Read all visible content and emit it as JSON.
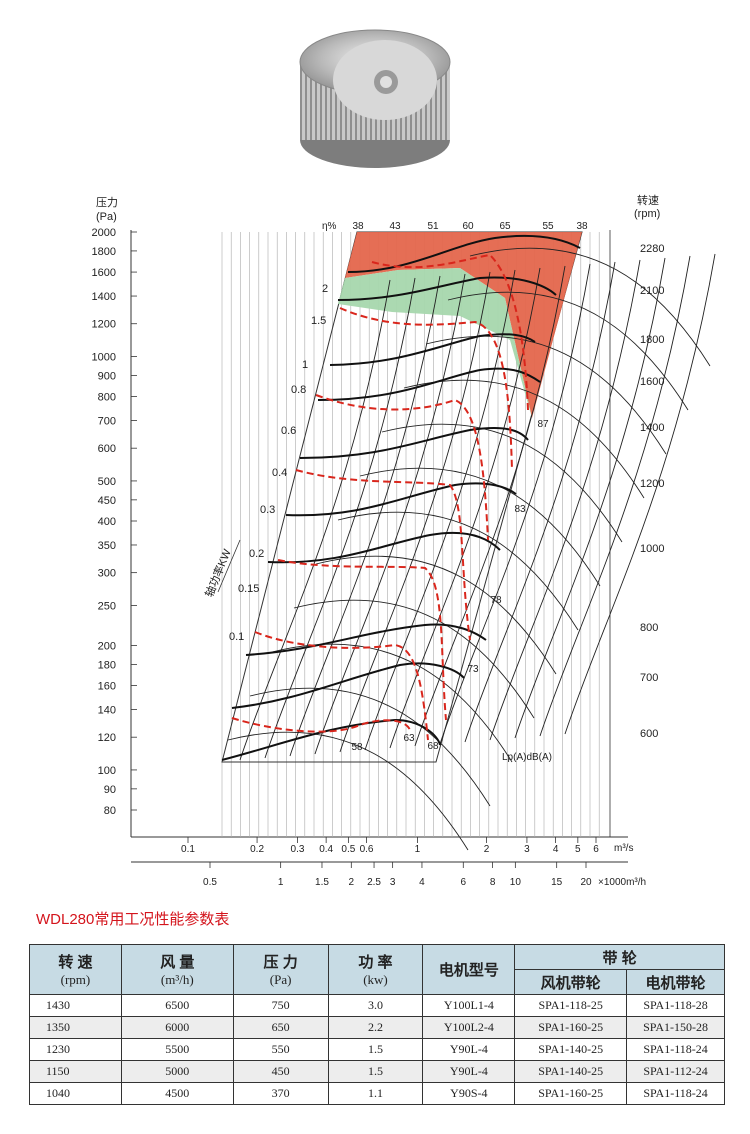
{
  "chart_data": {
    "type": "line",
    "title": "",
    "y_axis_left": {
      "label_line1": "压力",
      "label_line2": "(Pa)",
      "scale": "log",
      "ticks": [
        2000,
        1800,
        1600,
        1400,
        1200,
        1000,
        900,
        800,
        700,
        600,
        500,
        450,
        400,
        350,
        300,
        250,
        200,
        180,
        160,
        140,
        120,
        100,
        90,
        80
      ]
    },
    "y_axis_right": {
      "label_line1": "转速",
      "label_line2": "(rpm)",
      "ticks": [
        2280,
        2100,
        1800,
        1600,
        1400,
        1200,
        1000,
        800,
        700,
        600
      ]
    },
    "x_axis_m3s": {
      "unit": "m³/s",
      "scale": "log",
      "ticks": [
        "0.1",
        "0.2",
        "0.3",
        "0.4",
        "0.5",
        "0.6",
        "1",
        "2",
        "3",
        "4",
        "5",
        "6"
      ]
    },
    "x_axis_m3h": {
      "unit": "×1000m³/h",
      "scale": "log",
      "ticks": [
        "0.5",
        "1",
        "1.5",
        "2",
        "2.5",
        "3",
        "4",
        "6",
        "8",
        "10",
        "15",
        "20"
      ]
    },
    "efficiency_label": "η%",
    "efficiency_top_values": [
      "38",
      "43",
      "51",
      "60",
      "65",
      "55",
      "38"
    ],
    "shaft_power_label": "轴功率KW",
    "shaft_power_values": [
      "2",
      "1.5",
      "1",
      "0.8",
      "0.6",
      "0.4",
      "0.3",
      "0.2",
      "0.15",
      "0.1"
    ],
    "noise_label": "Lp(A)dB(A)",
    "noise_values": [
      "58",
      "63",
      "68",
      "73",
      "78",
      "83",
      "87"
    ],
    "zone_colors": {
      "red_zone": "#e4664c",
      "green_zone": "#a6d7ad",
      "red_dash": "#d9261c"
    }
  },
  "table": {
    "title": "WDL280常用工况性能参数表",
    "headers": {
      "speed": "转 速",
      "speed_unit": "(rpm)",
      "flow": "风 量",
      "flow_unit": "(m³/h)",
      "pressure": "压 力",
      "pressure_unit": "(Pa)",
      "power": "功 率",
      "power_unit": "(kw)",
      "motor": "电机型号",
      "pulley": "带 轮",
      "fan_pulley": "风机带轮",
      "motor_pulley": "电机带轮"
    },
    "rows": [
      [
        "1430",
        "6500",
        "750",
        "3.0",
        "Y100L1-4",
        "SPA1-118-25",
        "SPA1-118-28"
      ],
      [
        "1350",
        "6000",
        "650",
        "2.2",
        "Y100L2-4",
        "SPA1-160-25",
        "SPA1-150-28"
      ],
      [
        "1230",
        "5500",
        "550",
        "1.5",
        "Y90L-4",
        "SPA1-140-25",
        "SPA1-118-24"
      ],
      [
        "1150",
        "5000",
        "450",
        "1.5",
        "Y90L-4",
        "SPA1-140-25",
        "SPA1-112-24"
      ],
      [
        "1040",
        "4500",
        "370",
        "1.1",
        "Y90S-4",
        "SPA1-160-25",
        "SPA1-118-24"
      ]
    ]
  }
}
